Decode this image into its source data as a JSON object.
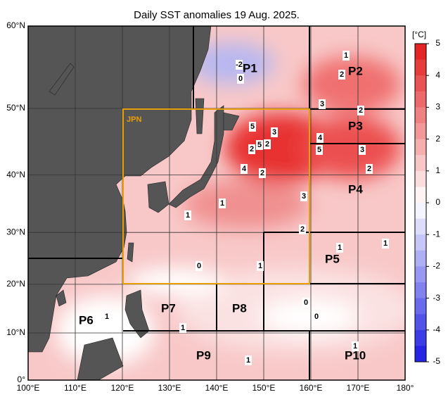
{
  "title": "Daily SST anomalies 19 Aug. 2025.",
  "lon_labels": [
    "100°E",
    "110°E",
    "120°E",
    "130°E",
    "140°E",
    "150°E",
    "160°E",
    "170°E",
    "180°"
  ],
  "lat_labels": [
    "0°",
    "10°N",
    "20°N",
    "30°N",
    "40°N",
    "50°N",
    "60°N"
  ],
  "colorbar": {
    "unit": "[°C]",
    "ticks": [
      5,
      4,
      3,
      2,
      1,
      0,
      -1,
      -2,
      -3,
      -4,
      -5
    ]
  },
  "regions": [
    "JPN",
    "P1",
    "P2",
    "P3",
    "P4",
    "P5",
    "P6",
    "P7",
    "P8",
    "P9",
    "P10"
  ],
  "contour_labels": [
    -2,
    0,
    1,
    2,
    3,
    2,
    5,
    3,
    2,
    5,
    2,
    4,
    2,
    5,
    4,
    3,
    2,
    3,
    1,
    1,
    2,
    1,
    1,
    0,
    1,
    0,
    0,
    1,
    1,
    1,
    1
  ]
}
